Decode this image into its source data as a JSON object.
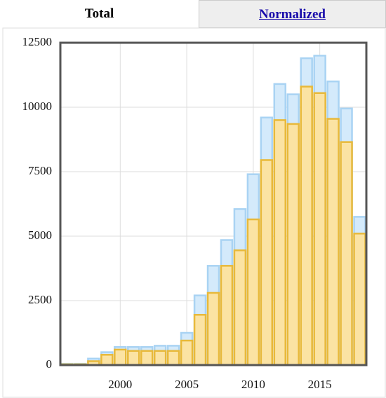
{
  "tabs": [
    "Total",
    "Normalized"
  ],
  "chart_data": {
    "type": "bar",
    "x": [
      1996,
      1997,
      1998,
      1999,
      2000,
      2001,
      2002,
      2003,
      2004,
      2005,
      2006,
      2007,
      2008,
      2009,
      2010,
      2011,
      2012,
      2013,
      2014,
      2015,
      2016,
      2017,
      2018
    ],
    "series": [
      {
        "color": "#a9d3f3",
        "values": [
          50,
          50,
          250,
          500,
          700,
          700,
          700,
          750,
          750,
          1250,
          2700,
          3850,
          4850,
          6050,
          7400,
          9600,
          10900,
          10500,
          11900,
          12000,
          11000,
          9950,
          5750
        ]
      },
      {
        "color": "#e8b93a",
        "values": [
          30,
          30,
          150,
          400,
          600,
          550,
          550,
          550,
          550,
          950,
          1950,
          2800,
          3850,
          4450,
          5650,
          7950,
          9500,
          9350,
          10800,
          10550,
          9550,
          8650,
          5100
        ]
      }
    ],
    "xlim": [
      1995.5,
      2018.5
    ],
    "xticks": [
      2000,
      2005,
      2010,
      2015
    ],
    "ylim": [
      0,
      12500
    ],
    "yticks": [
      0,
      2500,
      5000,
      7500,
      10000,
      12500
    ],
    "grid": true
  }
}
